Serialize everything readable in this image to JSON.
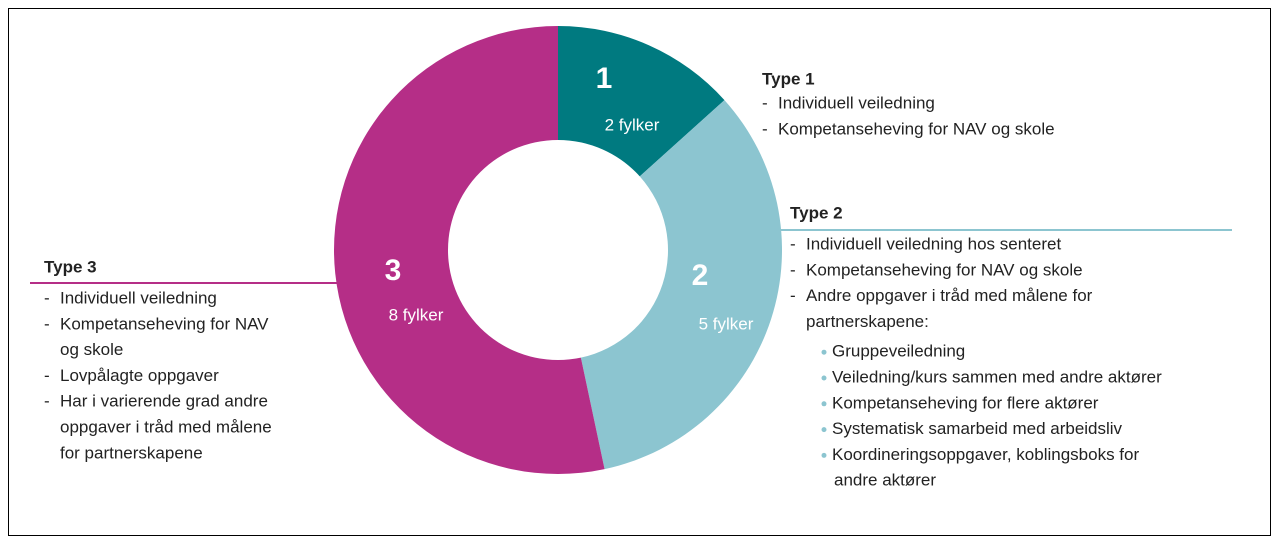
{
  "chart_data": {
    "type": "pie",
    "donut": true,
    "categories": [
      "1",
      "2",
      "3"
    ],
    "values": [
      2,
      5,
      8
    ],
    "value_labels": [
      "2 fylker",
      "5 fylker",
      "8 fylker"
    ],
    "colors": [
      "#007a80",
      "#8cc5d0",
      "#b52e87"
    ],
    "annotations": [
      {
        "title": "Type 1",
        "items": [
          [
            "Individuell veiledning"
          ],
          [
            "Kompetanseheving for NAV og skole"
          ]
        ]
      },
      {
        "title": "Type 2",
        "items": [
          [
            "Individuell veiledning hos senteret"
          ],
          [
            "Kompetanseheving for NAV og skole"
          ],
          [
            "Andre oppgaver i tråd med målene for",
            "partnerskapene:"
          ]
        ],
        "sub_items": [
          [
            "Gruppeveiledning"
          ],
          [
            "Veiledning/kurs sammen med andre aktører"
          ],
          [
            "Kompetanseheving for flere aktører"
          ],
          [
            "Systematisk samarbeid med arbeidsliv"
          ],
          [
            "Koordineringsoppgaver, koblingsboks for",
            "andre aktører"
          ]
        ]
      },
      {
        "title": "Type 3",
        "items": [
          [
            "Individuell veiledning"
          ],
          [
            "Kompetanseheving for NAV",
            "og skole"
          ],
          [
            "Lovpålagte oppgaver"
          ],
          [
            "Har i varierende grad andre",
            "oppgaver i tråd med målene",
            "for partnerskapene"
          ]
        ]
      }
    ]
  }
}
